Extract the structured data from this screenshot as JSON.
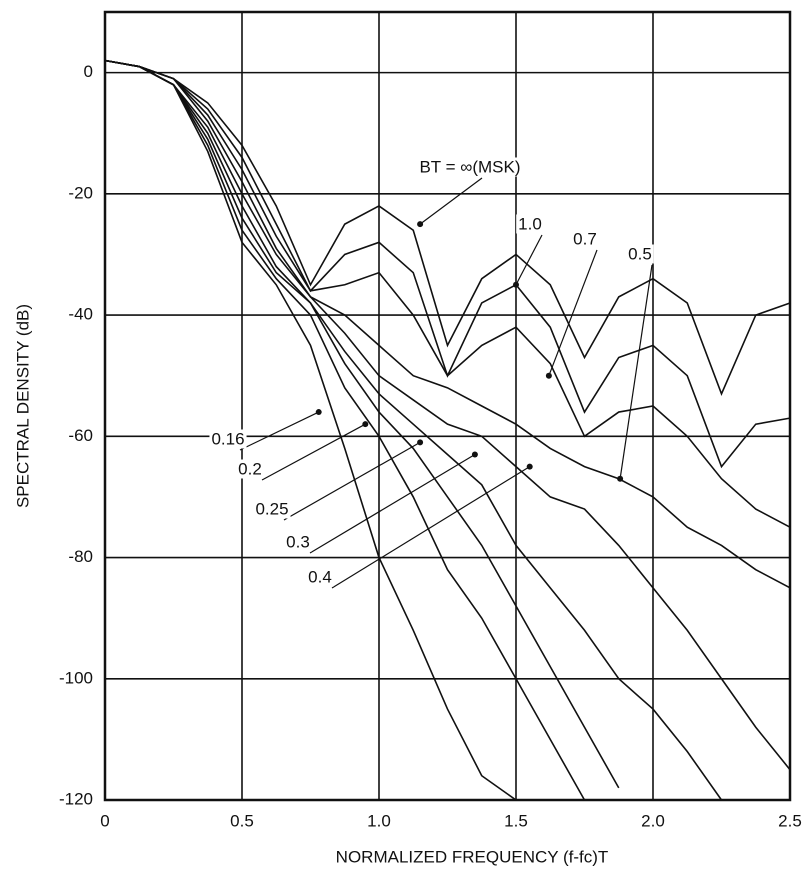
{
  "chart_data": {
    "type": "line",
    "y_label": "SPECTRAL DENSITY (dB)",
    "x_label": "NORMALIZED FREQUENCY (f-fc)T",
    "x": [
      0,
      0.125,
      0.25,
      0.375,
      0.5,
      0.625,
      0.75,
      0.875,
      1,
      1.125,
      1.25,
      1.375,
      1.5,
      1.625,
      1.75,
      1.875,
      2,
      2.125,
      2.25,
      2.375,
      2.5
    ],
    "xlim": [
      0,
      2.5
    ],
    "xticks": [
      0,
      0.5,
      {
        "value": 1,
        "label": "1.0"
      },
      1.5,
      {
        "value": 2,
        "label": "2.0"
      },
      2.5
    ],
    "ylim": [
      -120,
      10
    ],
    "yticks": [
      0,
      -20,
      -40,
      -60,
      -80,
      -100,
      -120
    ],
    "grid": true,
    "series": [
      {
        "name": "BT = ∞(MSK)",
        "color": "#111111",
        "values": [
          2,
          1,
          -1,
          -5,
          -12,
          -22,
          -35,
          -25,
          -22,
          -26,
          -45,
          -34,
          -30,
          -35,
          -47,
          -37,
          -34,
          -38,
          -53,
          -40,
          -38
        ]
      },
      {
        "name": "1.0",
        "color": "#111111",
        "values": [
          2,
          1,
          -1,
          -6,
          -14,
          -25,
          -36,
          -30,
          -28,
          -33,
          -50,
          -38,
          -35,
          -42,
          -56,
          -47,
          -45,
          -50,
          -65,
          -58,
          -57
        ]
      },
      {
        "name": "0.7",
        "color": "#111111",
        "values": [
          2,
          1,
          -1,
          -7,
          -16,
          -27,
          -36,
          -35,
          -33,
          -40,
          -50,
          -45,
          -42,
          -48,
          -60,
          -56,
          -55,
          -60,
          -67,
          -72,
          -75
        ]
      },
      {
        "name": "0.5",
        "color": "#111111",
        "values": [
          2,
          1,
          -1,
          -8,
          -18,
          -29,
          -37,
          -40,
          -45,
          -50,
          -52,
          -55,
          -58,
          -62,
          -65,
          -67,
          -70,
          -75,
          -78,
          -82,
          -85
        ]
      },
      {
        "name": "0.4",
        "color": "#111111",
        "values": [
          2,
          1,
          -2,
          -9,
          -20,
          -30,
          -37,
          -43,
          -50,
          -54,
          -58,
          -60,
          -65,
          -70,
          -72,
          -78,
          -85,
          -92,
          -100,
          -108,
          -115
        ]
      },
      {
        "name": "0.3",
        "color": "#111111",
        "values": [
          2,
          1,
          -2,
          -10,
          -22,
          -32,
          -38,
          -46,
          -53,
          -58,
          -63,
          -68,
          -78,
          -85,
          -92,
          -100,
          -105,
          -112,
          -120,
          null,
          null
        ]
      },
      {
        "name": "0.25",
        "color": "#111111",
        "values": [
          2,
          1,
          -2,
          -11,
          -24,
          -33,
          -38,
          -48,
          -56,
          -62,
          -70,
          -78,
          -88,
          -98,
          -108,
          -118,
          null,
          null,
          null,
          null,
          null
        ]
      },
      {
        "name": "0.2",
        "color": "#111111",
        "values": [
          2,
          1,
          -2,
          -12,
          -26,
          -34,
          -40,
          -52,
          -60,
          -70,
          -82,
          -90,
          -100,
          -110,
          -120,
          null,
          null,
          null,
          null,
          null,
          null
        ]
      },
      {
        "name": "0.16",
        "color": "#111111",
        "values": [
          2,
          1,
          -2,
          -13,
          -28,
          -35,
          -45,
          -62,
          -80,
          -92,
          -105,
          -116,
          -120,
          null,
          null,
          null,
          null,
          null,
          null,
          null,
          null
        ]
      }
    ]
  }
}
